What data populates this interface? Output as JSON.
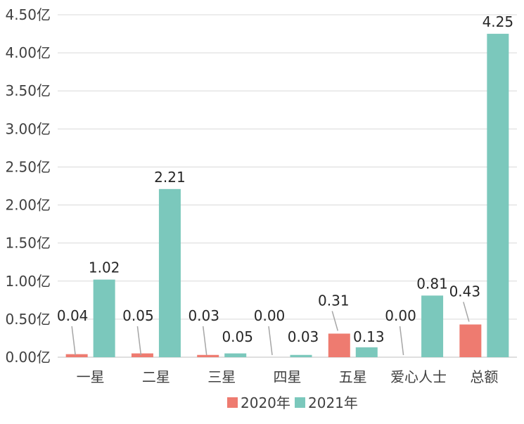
{
  "chart_data": {
    "type": "bar",
    "categories": [
      "一星",
      "二星",
      "三星",
      "四星",
      "五星",
      "爱心人士",
      "总额"
    ],
    "series": [
      {
        "name": "2020年",
        "color": "#EE7B70",
        "values": [
          0.04,
          0.05,
          0.03,
          0.0,
          0.31,
          0.0,
          0.43
        ],
        "labels": [
          "0.04",
          "0.05",
          "0.03",
          "0.00",
          "0.31",
          "0.00",
          "0.43"
        ]
      },
      {
        "name": "2021年",
        "color": "#7BC8BC",
        "values": [
          1.02,
          2.21,
          0.05,
          0.03,
          0.13,
          0.81,
          4.25
        ],
        "labels": [
          "1.02",
          "2.21",
          "0.05",
          "0.03",
          "0.13",
          "0.81",
          "4.25"
        ]
      }
    ],
    "yticks": [
      "0.00亿",
      "0.50亿",
      "1.00亿",
      "1.50亿",
      "2.00亿",
      "2.50亿",
      "3.00亿",
      "3.50亿",
      "4.00亿",
      "4.50亿"
    ],
    "ylim": [
      0,
      4.5
    ],
    "grid": true,
    "legend": "bottom",
    "title": "",
    "xlabel": "",
    "ylabel": ""
  }
}
